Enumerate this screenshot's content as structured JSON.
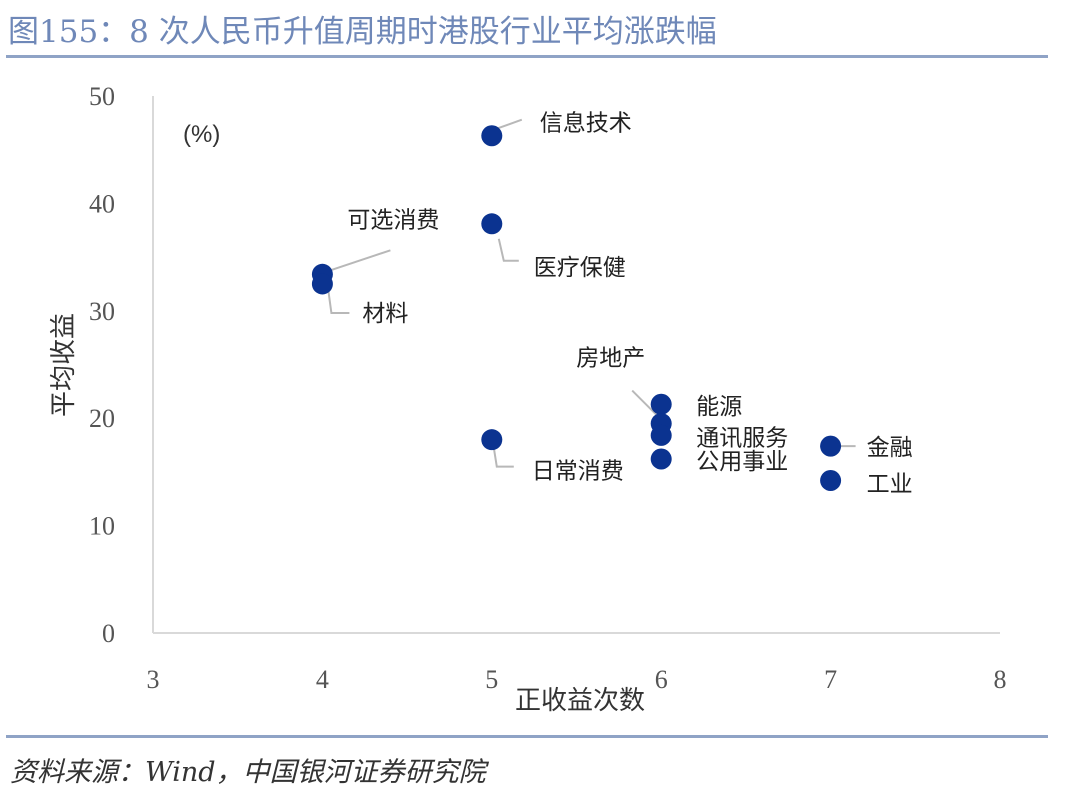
{
  "figure": {
    "title": "图155：8 次人民币升值周期时港股行业平均涨跌幅",
    "source": "资料来源：Wind，中国银河证券研究院"
  },
  "colors": {
    "point": "#0b3390",
    "axis": "#d9d9d9",
    "leader": "#b8b8b8",
    "rule": "#8fa3c6"
  },
  "chart_data": {
    "type": "scatter",
    "title": "",
    "xlabel": "正收益次数",
    "ylabel": "平均收益",
    "unit_label": "(%)",
    "xlim": [
      3,
      8
    ],
    "ylim": [
      0,
      50
    ],
    "xticks": [
      3,
      4,
      5,
      6,
      7,
      8
    ],
    "yticks": [
      0,
      10,
      20,
      30,
      40,
      50
    ],
    "grid": false,
    "legend": "none",
    "points": [
      {
        "label": "信息技术",
        "x": 5,
        "y": 46.3
      },
      {
        "label": "医疗保健",
        "x": 5,
        "y": 38.1
      },
      {
        "label": "可选消费",
        "x": 4,
        "y": 33.4
      },
      {
        "label": "材料",
        "x": 4,
        "y": 32.5
      },
      {
        "label": "日常消费",
        "x": 5,
        "y": 18.0
      },
      {
        "label": "能源",
        "x": 6,
        "y": 21.3
      },
      {
        "label": "房地产",
        "x": 6,
        "y": 19.5
      },
      {
        "label": "通讯服务",
        "x": 6,
        "y": 18.4
      },
      {
        "label": "公用事业",
        "x": 6,
        "y": 16.2
      },
      {
        "label": "金融",
        "x": 7,
        "y": 17.4
      },
      {
        "label": "工业",
        "x": 7,
        "y": 14.2
      }
    ]
  }
}
